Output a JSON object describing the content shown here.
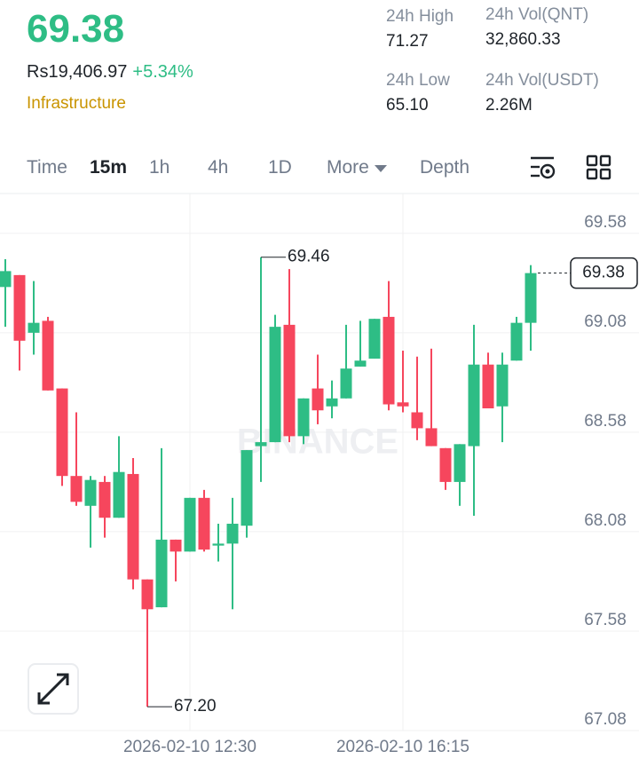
{
  "header": {
    "price": "69.38",
    "fiat_price": "Rs19,406.97",
    "change": "+5.34%",
    "tag": "Infrastructure",
    "stats": [
      {
        "label": "24h High",
        "value": "71.27"
      },
      {
        "label": "24h Vol(QNT)",
        "value": "32,860.33"
      },
      {
        "label": "24h Low",
        "value": "65.10"
      },
      {
        "label": "24h Vol(USDT)",
        "value": "2.26M"
      }
    ]
  },
  "tabs": [
    "Time",
    "15m",
    "1h",
    "4h",
    "1D",
    "More",
    "Depth"
  ],
  "chart_data": {
    "type": "candlestick",
    "watermark": "BINANCE",
    "up_color": "#2ebd85",
    "down_color": "#f6465d",
    "categories": [
      null,
      null,
      null,
      null,
      null,
      null,
      null,
      null,
      null,
      null,
      null,
      null,
      null,
      "2026-02-10 12:30",
      null,
      null,
      null,
      null,
      null,
      null,
      null,
      null,
      null,
      null,
      null,
      null,
      null,
      null,
      "2026-02-10 16:15",
      null,
      null,
      null,
      null,
      null,
      null,
      null,
      null,
      null
    ],
    "open": [
      69.31,
      69.37,
      69.08,
      69.14,
      68.8,
      68.36,
      68.21,
      68.33,
      68.15,
      68.37,
      67.84,
      67.7,
      68.04,
      67.98,
      68.25,
      68.01,
      68.02,
      68.11,
      68.51,
      68.53,
      69.12,
      68.56,
      68.8,
      68.71,
      68.75,
      68.91,
      68.95,
      69.16,
      68.73,
      68.68,
      68.6,
      68.5,
      68.33,
      68.51,
      68.92,
      68.71,
      68.94,
      69.13
    ],
    "high": [
      69.45,
      69.37,
      69.34,
      69.16,
      68.8,
      68.68,
      68.36,
      68.36,
      68.56,
      68.45,
      67.84,
      68.5,
      68.04,
      68.25,
      68.29,
      68.12,
      68.25,
      68.49,
      69.46,
      69.17,
      69.4,
      68.75,
      68.97,
      68.84,
      69.12,
      69.14,
      69.15,
      69.34,
      68.99,
      68.96,
      69.0,
      68.5,
      68.52,
      69.12,
      68.98,
      68.98,
      69.16,
      69.42
    ],
    "low": [
      69.11,
      68.89,
      68.97,
      68.79,
      68.31,
      68.21,
      68.0,
      68.05,
      68.15,
      67.79,
      67.2,
      67.7,
      67.83,
      67.98,
      67.98,
      67.93,
      67.69,
      68.05,
      68.33,
      68.53,
      68.53,
      68.52,
      68.62,
      68.65,
      68.75,
      68.91,
      68.95,
      68.69,
      68.68,
      68.54,
      68.51,
      68.29,
      68.21,
      68.16,
      68.7,
      68.53,
      68.94,
      68.99
    ],
    "close": [
      69.39,
      69.04,
      69.13,
      68.79,
      68.36,
      68.23,
      68.34,
      68.15,
      68.38,
      67.84,
      67.69,
      68.04,
      67.98,
      68.25,
      67.99,
      68.02,
      68.12,
      68.49,
      68.53,
      69.11,
      68.56,
      68.75,
      68.69,
      68.75,
      68.9,
      68.94,
      69.15,
      68.72,
      68.71,
      68.6,
      68.51,
      68.33,
      68.52,
      68.92,
      68.7,
      68.92,
      69.13,
      69.38
    ],
    "high_label": "69.46",
    "low_label": "67.20",
    "last_label": "69.38",
    "ylim": [
      67.08,
      69.78
    ],
    "yticks": [
      69.58,
      69.08,
      68.58,
      68.08,
      67.58,
      67.08
    ],
    "grid": true
  }
}
